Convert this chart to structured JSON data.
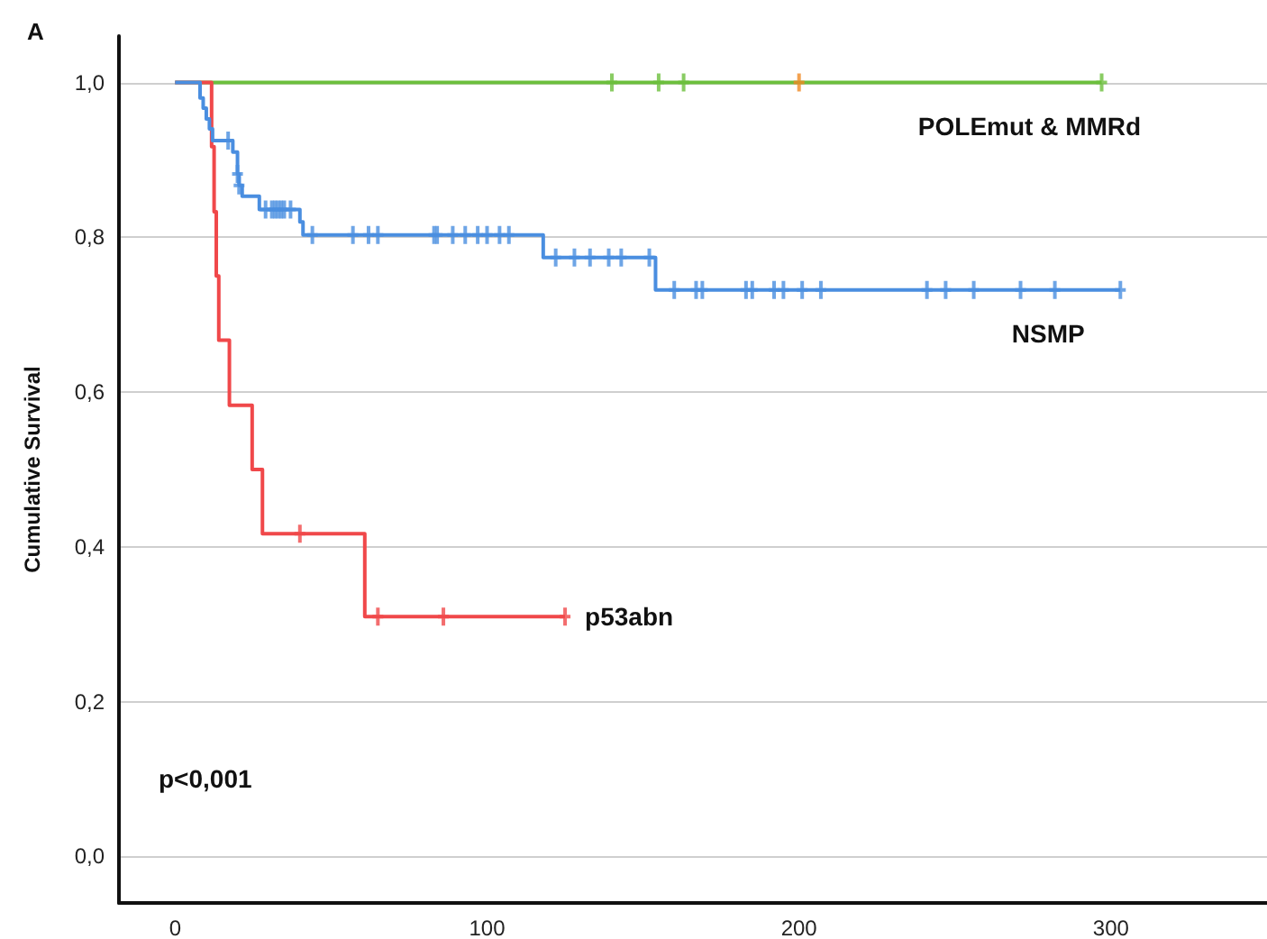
{
  "chart_data": {
    "type": "step",
    "title": "A",
    "ylabel": "Cumulative Survival",
    "xlim": [
      -18,
      350
    ],
    "xticks": [
      0,
      100,
      200,
      300
    ],
    "ylim": [
      -0.06,
      1.06
    ],
    "yticks": [
      {
        "value": 0,
        "label": "0,0"
      },
      {
        "value": 0.2,
        "label": "0,2"
      },
      {
        "value": 0.4,
        "label": "0,4"
      },
      {
        "value": 0.6,
        "label": "0,6"
      },
      {
        "value": 0.8,
        "label": "0,8"
      },
      {
        "value": 1,
        "label": "1,0"
      }
    ],
    "grid": "y",
    "line_style": "solid",
    "annotations": [
      "p<0,001"
    ],
    "series": [
      {
        "name": "POLEmut & MMRd",
        "marker": "none",
        "color": "#6cbf3c",
        "x": [
          0,
          297
        ],
        "values": [
          1,
          1
        ]
      },
      {
        "name": "NSMP",
        "marker": "none",
        "color": "#4a8ee0",
        "x": [
          0,
          8,
          9,
          10,
          11,
          12,
          18.5,
          20,
          20.5,
          21.5,
          27,
          40,
          41,
          118,
          154,
          303
        ],
        "values": [
          1,
          0.98,
          0.967,
          0.953,
          0.94,
          0.925,
          0.91,
          0.882,
          0.867,
          0.853,
          0.836,
          0.82,
          0.803,
          0.774,
          0.732,
          0.732
        ]
      },
      {
        "name": "p53abn",
        "marker": "none",
        "color": "#f0484a",
        "x": [
          0,
          11.7,
          12.5,
          13.2,
          14,
          17.4,
          24.7,
          28,
          60.8,
          125
        ],
        "values": [
          1,
          0.917,
          0.833,
          0.75,
          0.667,
          0.583,
          0.5,
          0.417,
          0.31,
          0.31
        ]
      },
      {
        "type": "scatter",
        "marker": "cross",
        "color": "#6cbf3c",
        "x": [
          140,
          155,
          163,
          297
        ],
        "values": [
          1,
          1,
          1,
          1
        ]
      },
      {
        "type": "scatter",
        "marker": "cross",
        "color": "#f08a24",
        "x": [
          200
        ],
        "values": [
          1
        ]
      },
      {
        "type": "scatter",
        "marker": "cross",
        "color": "#4a8ee0",
        "x": [
          17,
          20,
          20.5,
          29,
          31,
          32,
          33,
          34,
          35,
          37,
          44,
          57,
          62,
          65,
          83,
          84,
          89,
          93,
          97,
          100,
          104,
          107,
          122,
          128,
          133,
          139,
          143,
          152,
          160,
          167,
          169,
          183,
          185,
          192,
          195,
          201,
          207,
          241,
          247,
          256,
          271,
          282,
          303
        ],
        "values": [
          0.925,
          0.882,
          0.867,
          0.836,
          0.836,
          0.836,
          0.836,
          0.836,
          0.836,
          0.836,
          0.803,
          0.803,
          0.803,
          0.803,
          0.803,
          0.803,
          0.803,
          0.803,
          0.803,
          0.803,
          0.803,
          0.803,
          0.774,
          0.774,
          0.774,
          0.774,
          0.774,
          0.774,
          0.732,
          0.732,
          0.732,
          0.732,
          0.732,
          0.732,
          0.732,
          0.732,
          0.732,
          0.732,
          0.732,
          0.732,
          0.732,
          0.732,
          0.732
        ]
      },
      {
        "type": "scatter",
        "marker": "cross",
        "color": "#f0484a",
        "x": [
          40,
          65,
          86,
          125
        ],
        "values": [
          0.417,
          0.31,
          0.31,
          0.31
        ]
      }
    ]
  }
}
